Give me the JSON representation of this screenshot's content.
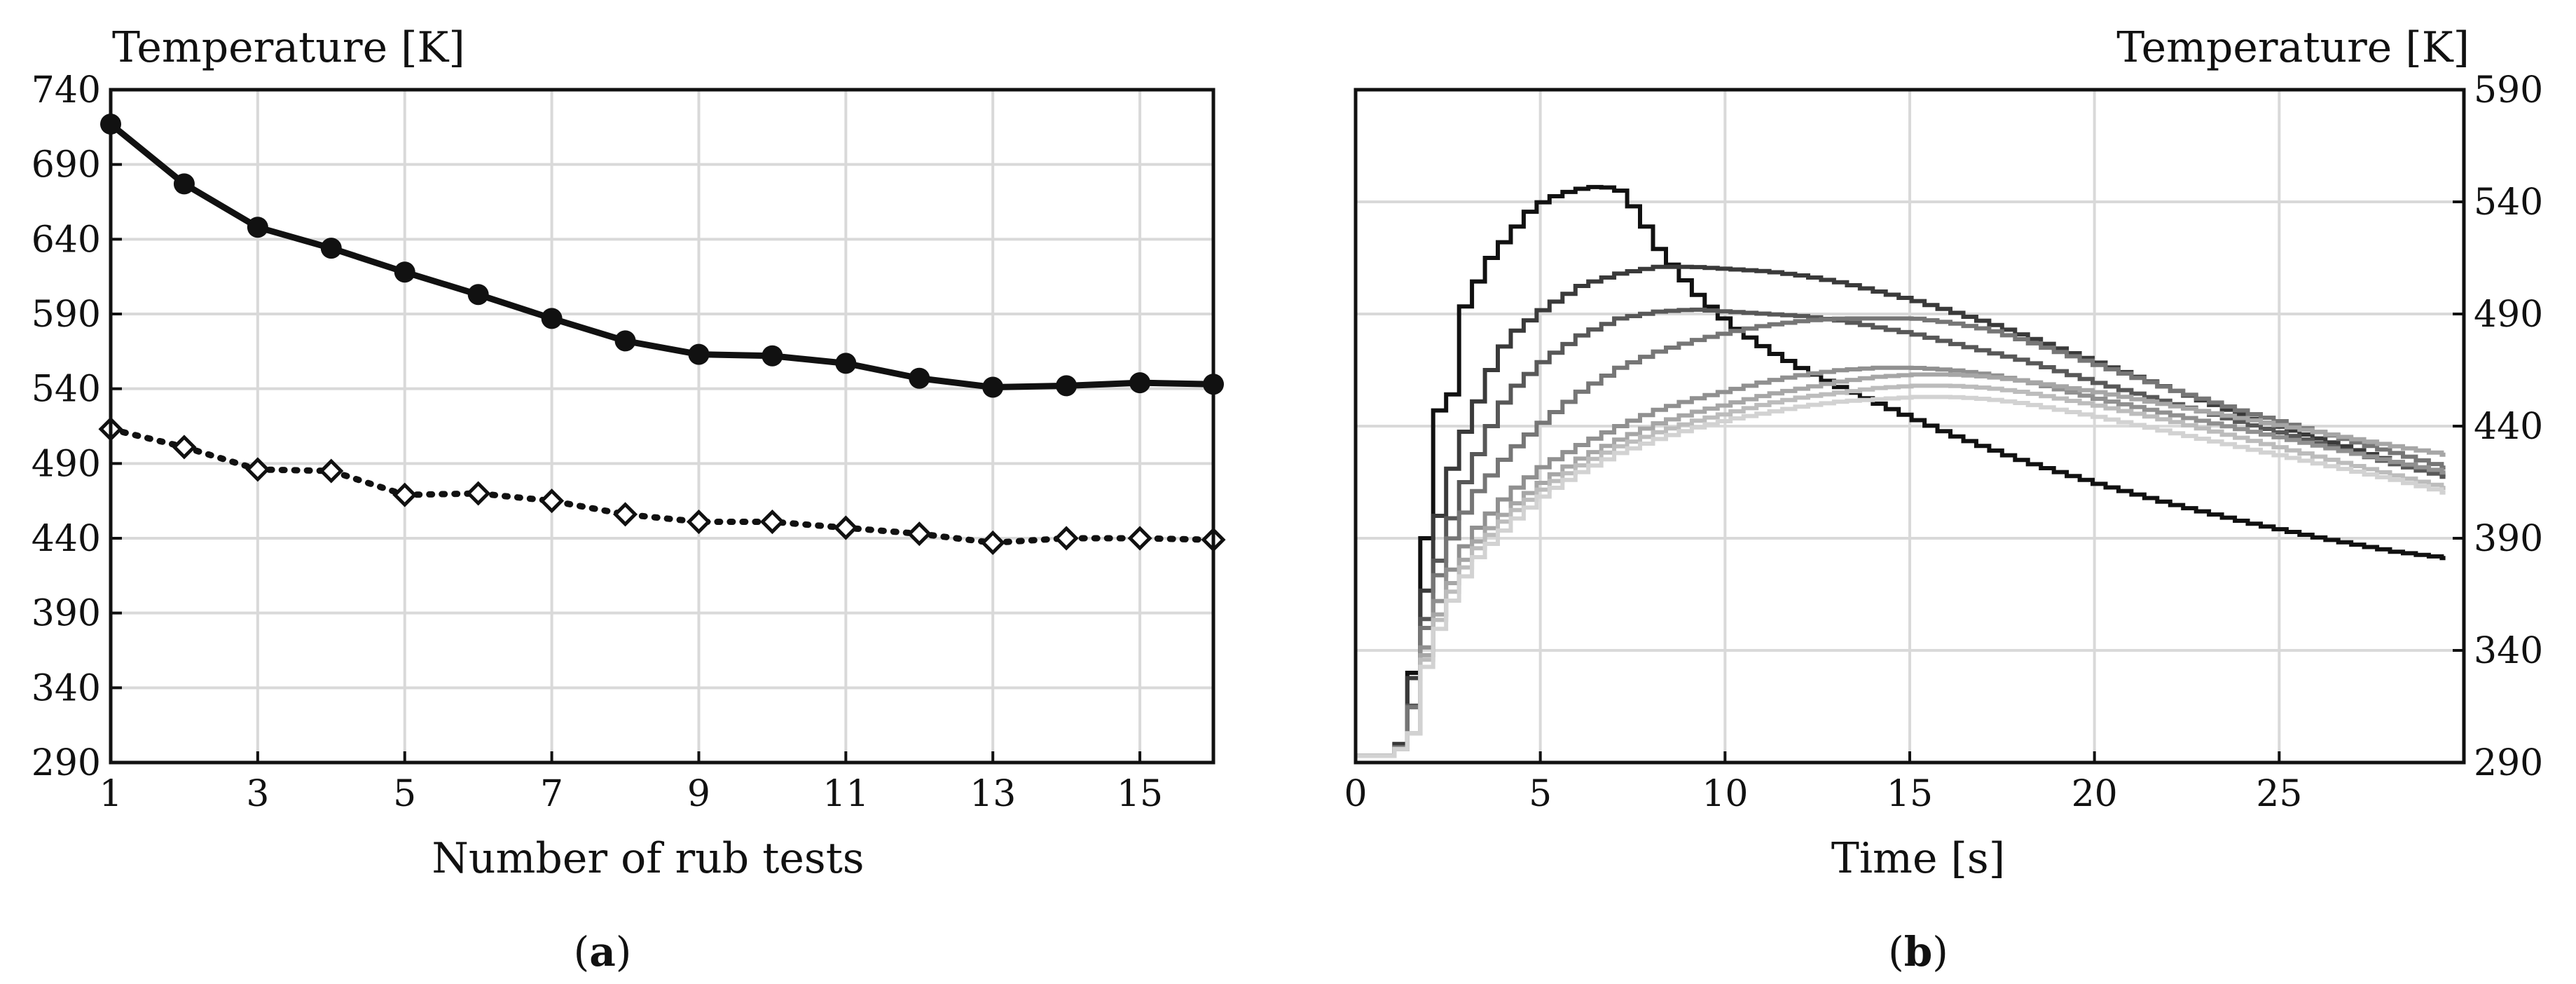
{
  "chart_data": [
    {
      "type": "line",
      "panel_label": "a",
      "ylabel": "Temperature [K]",
      "xlabel": "Number of rub tests",
      "xlim": [
        1,
        16
      ],
      "ylim": [
        290,
        740
      ],
      "xticks": [
        1,
        3,
        5,
        7,
        9,
        11,
        13,
        15
      ],
      "yticks": [
        290,
        340,
        390,
        440,
        490,
        540,
        590,
        640,
        690,
        740
      ],
      "grid": true,
      "x": [
        1,
        2,
        3,
        4,
        5,
        6,
        7,
        8,
        9,
        10,
        11,
        12,
        13,
        14,
        15,
        16
      ],
      "series": [
        {
          "style": "solid",
          "marker": "filled-circle",
          "color": "#111111",
          "values": [
            717,
            677,
            648,
            634,
            618,
            603,
            587,
            572,
            563,
            562,
            557,
            547,
            541,
            542,
            544,
            543
          ]
        },
        {
          "style": "dotted",
          "marker": "open-diamond",
          "color": "#111111",
          "values": [
            513,
            501,
            486,
            485,
            469,
            470,
            465,
            456,
            451,
            451,
            447,
            443,
            437,
            440,
            440,
            439
          ]
        }
      ]
    },
    {
      "type": "line",
      "panel_label": "b",
      "ylabel": "Temperature [K]",
      "xlabel": "Time [s]",
      "xlim": [
        0,
        30
      ],
      "ylim": [
        290,
        590
      ],
      "xticks": [
        0,
        5,
        10,
        15,
        20,
        25
      ],
      "yticks": [
        290,
        340,
        390,
        440,
        490,
        540,
        590
      ],
      "grid": true,
      "y_axis_side": "right",
      "series": [
        {
          "color": "#111111",
          "points": [
            [
              0,
              293
            ],
            [
              0.9,
              293
            ],
            [
              1.1,
              300
            ],
            [
              1.4,
              330
            ],
            [
              1.5,
              390
            ],
            [
              1.8,
              390
            ],
            [
              2,
              447
            ],
            [
              2.4,
              447
            ],
            [
              2.7,
              490
            ],
            [
              3,
              500
            ],
            [
              3.5,
              515
            ],
            [
              4,
              525
            ],
            [
              4.5,
              535
            ],
            [
              5,
              541
            ],
            [
              5.5,
              544
            ],
            [
              6,
              546
            ],
            [
              6.5,
              547
            ],
            [
              7,
              545
            ],
            [
              7.5,
              535
            ],
            [
              8,
              520
            ],
            [
              9,
              500
            ],
            [
              10,
              485
            ],
            [
              11,
              474
            ],
            [
              12,
              465
            ],
            [
              13,
              457
            ],
            [
              14,
              450
            ],
            [
              15,
              443
            ],
            [
              16,
              436
            ],
            [
              17,
              430
            ],
            [
              18,
              424
            ],
            [
              20,
              414
            ],
            [
              22,
              405
            ],
            [
              24,
              397
            ],
            [
              26,
              390
            ],
            [
              28,
              384
            ],
            [
              29.5,
              381
            ]
          ]
        },
        {
          "color": "#3a3a3a",
          "points": [
            [
              0,
              293
            ],
            [
              0.9,
              293
            ],
            [
              1.2,
              303
            ],
            [
              1.5,
              340
            ],
            [
              1.8,
              372
            ],
            [
              2.1,
              400
            ],
            [
              2.6,
              430
            ],
            [
              3,
              445
            ],
            [
              3.5,
              465
            ],
            [
              4,
              480
            ],
            [
              5,
              493
            ],
            [
              6,
              503
            ],
            [
              7,
              508
            ],
            [
              8,
              511
            ],
            [
              9,
              511
            ],
            [
              10,
              510
            ],
            [
              11,
              509
            ],
            [
              12,
              507
            ],
            [
              13,
              504
            ],
            [
              14,
              500
            ],
            [
              15,
              496
            ],
            [
              16,
              491
            ],
            [
              17,
              486
            ],
            [
              18,
              480
            ],
            [
              20,
              468
            ],
            [
              22,
              456
            ],
            [
              24,
              444
            ],
            [
              26,
              434
            ],
            [
              28,
              424
            ],
            [
              29.5,
              418
            ]
          ]
        },
        {
          "color": "#585858",
          "points": [
            [
              0,
              293
            ],
            [
              0.9,
              293
            ],
            [
              1.3,
              303
            ],
            [
              1.6,
              340
            ],
            [
              1.9,
              368
            ],
            [
              2.3,
              392
            ],
            [
              2.8,
              415
            ],
            [
              3.5,
              440
            ],
            [
              4,
              455
            ],
            [
              5,
              470
            ],
            [
              6,
              481
            ],
            [
              7,
              488
            ],
            [
              8,
              491
            ],
            [
              9,
              492
            ],
            [
              10,
              491
            ],
            [
              11,
              490
            ],
            [
              12,
              489
            ],
            [
              13,
              487
            ],
            [
              14,
              484
            ],
            [
              15,
              481
            ],
            [
              16,
              477
            ],
            [
              17,
              473
            ],
            [
              18,
              469
            ],
            [
              20,
              459
            ],
            [
              22,
              450
            ],
            [
              24,
              441
            ],
            [
              26,
              432
            ],
            [
              28,
              423
            ],
            [
              29.5,
              417
            ]
          ]
        },
        {
          "color": "#767676",
          "points": [
            [
              0,
              293
            ],
            [
              0.9,
              293
            ],
            [
              1.3,
              303
            ],
            [
              1.6,
              338
            ],
            [
              1.9,
              362
            ],
            [
              2.3,
              385
            ],
            [
              3,
              408
            ],
            [
              4,
              428
            ],
            [
              5,
              443
            ],
            [
              6,
              456
            ],
            [
              7,
              466
            ],
            [
              8,
              473
            ],
            [
              9,
              478
            ],
            [
              10,
              482
            ],
            [
              11,
              485
            ],
            [
              12,
              487
            ],
            [
              13,
              488
            ],
            [
              14,
              488
            ],
            [
              15,
              488
            ],
            [
              16,
              486
            ],
            [
              17,
              483
            ],
            [
              18,
              478
            ],
            [
              20,
              467
            ],
            [
              22,
              456
            ],
            [
              24,
              446
            ],
            [
              26,
              437
            ],
            [
              28,
              428
            ],
            [
              29.5,
              421
            ]
          ]
        },
        {
          "color": "#909090",
          "points": [
            [
              0,
              293
            ],
            [
              0.9,
              293
            ],
            [
              1.4,
              303
            ],
            [
              1.7,
              338
            ],
            [
              2,
              358
            ],
            [
              2.5,
              378
            ],
            [
              3,
              392
            ],
            [
              4,
              410
            ],
            [
              5,
              423
            ],
            [
              6,
              432
            ],
            [
              7,
              440
            ],
            [
              8,
              447
            ],
            [
              9,
              452
            ],
            [
              10,
              456
            ],
            [
              11,
              460
            ],
            [
              12,
              463
            ],
            [
              13,
              465
            ],
            [
              14,
              466
            ],
            [
              15,
              466
            ],
            [
              16,
              465
            ],
            [
              17,
              463
            ],
            [
              18,
              460
            ],
            [
              20,
              452
            ],
            [
              22,
              445
            ],
            [
              24,
              438
            ],
            [
              26,
              431
            ],
            [
              28,
              424
            ],
            [
              29.5,
              419
            ]
          ]
        },
        {
          "color": "#a6a6a6",
          "points": [
            [
              0,
              293
            ],
            [
              0.9,
              293
            ],
            [
              1.4,
              303
            ],
            [
              1.7,
              335
            ],
            [
              2,
              352
            ],
            [
              2.5,
              372
            ],
            [
              3,
              386
            ],
            [
              4,
              403
            ],
            [
              5,
              416
            ],
            [
              6,
              426
            ],
            [
              7,
              434
            ],
            [
              8,
              441
            ],
            [
              9,
              446
            ],
            [
              10,
              450
            ],
            [
              11,
              454
            ],
            [
              12,
              457
            ],
            [
              13,
              460
            ],
            [
              14,
              462
            ],
            [
              15,
              463
            ],
            [
              16,
              463
            ],
            [
              17,
              462
            ],
            [
              18,
              460
            ],
            [
              20,
              455
            ],
            [
              22,
              449
            ],
            [
              24,
              443
            ],
            [
              26,
              437
            ],
            [
              28,
              431
            ],
            [
              29.5,
              427
            ]
          ]
        },
        {
          "color": "#bcbcbc",
          "points": [
            [
              0,
              293
            ],
            [
              0.9,
              293
            ],
            [
              1.4,
              303
            ],
            [
              1.7,
              333
            ],
            [
              2,
              350
            ],
            [
              2.5,
              368
            ],
            [
              3,
              383
            ],
            [
              4,
              400
            ],
            [
              5,
              413
            ],
            [
              6,
              423
            ],
            [
              7,
              431
            ],
            [
              8,
              437
            ],
            [
              9,
              442
            ],
            [
              10,
              446
            ],
            [
              11,
              450
            ],
            [
              12,
              453
            ],
            [
              13,
              455
            ],
            [
              14,
              457
            ],
            [
              15,
              458
            ],
            [
              16,
              458
            ],
            [
              17,
              457
            ],
            [
              18,
              455
            ],
            [
              20,
              449
            ],
            [
              22,
              442
            ],
            [
              24,
              434
            ],
            [
              26,
              426
            ],
            [
              28,
              418
            ],
            [
              29.5,
              412
            ]
          ]
        },
        {
          "color": "#d2d2d2",
          "points": [
            [
              0,
              293
            ],
            [
              0.9,
              293
            ],
            [
              1.4,
              303
            ],
            [
              1.7,
              330
            ],
            [
              2,
              346
            ],
            [
              2.5,
              364
            ],
            [
              3,
              379
            ],
            [
              4,
              396
            ],
            [
              5,
              410
            ],
            [
              6,
              420
            ],
            [
              7,
              428
            ],
            [
              8,
              434
            ],
            [
              9,
              439
            ],
            [
              10,
              443
            ],
            [
              11,
              446
            ],
            [
              12,
              449
            ],
            [
              13,
              451
            ],
            [
              14,
              452
            ],
            [
              15,
              453
            ],
            [
              16,
              453
            ],
            [
              17,
              452
            ],
            [
              18,
              450
            ],
            [
              20,
              444
            ],
            [
              22,
              437
            ],
            [
              24,
              430
            ],
            [
              26,
              423
            ],
            [
              28,
              416
            ],
            [
              29.5,
              410
            ]
          ]
        }
      ]
    }
  ]
}
